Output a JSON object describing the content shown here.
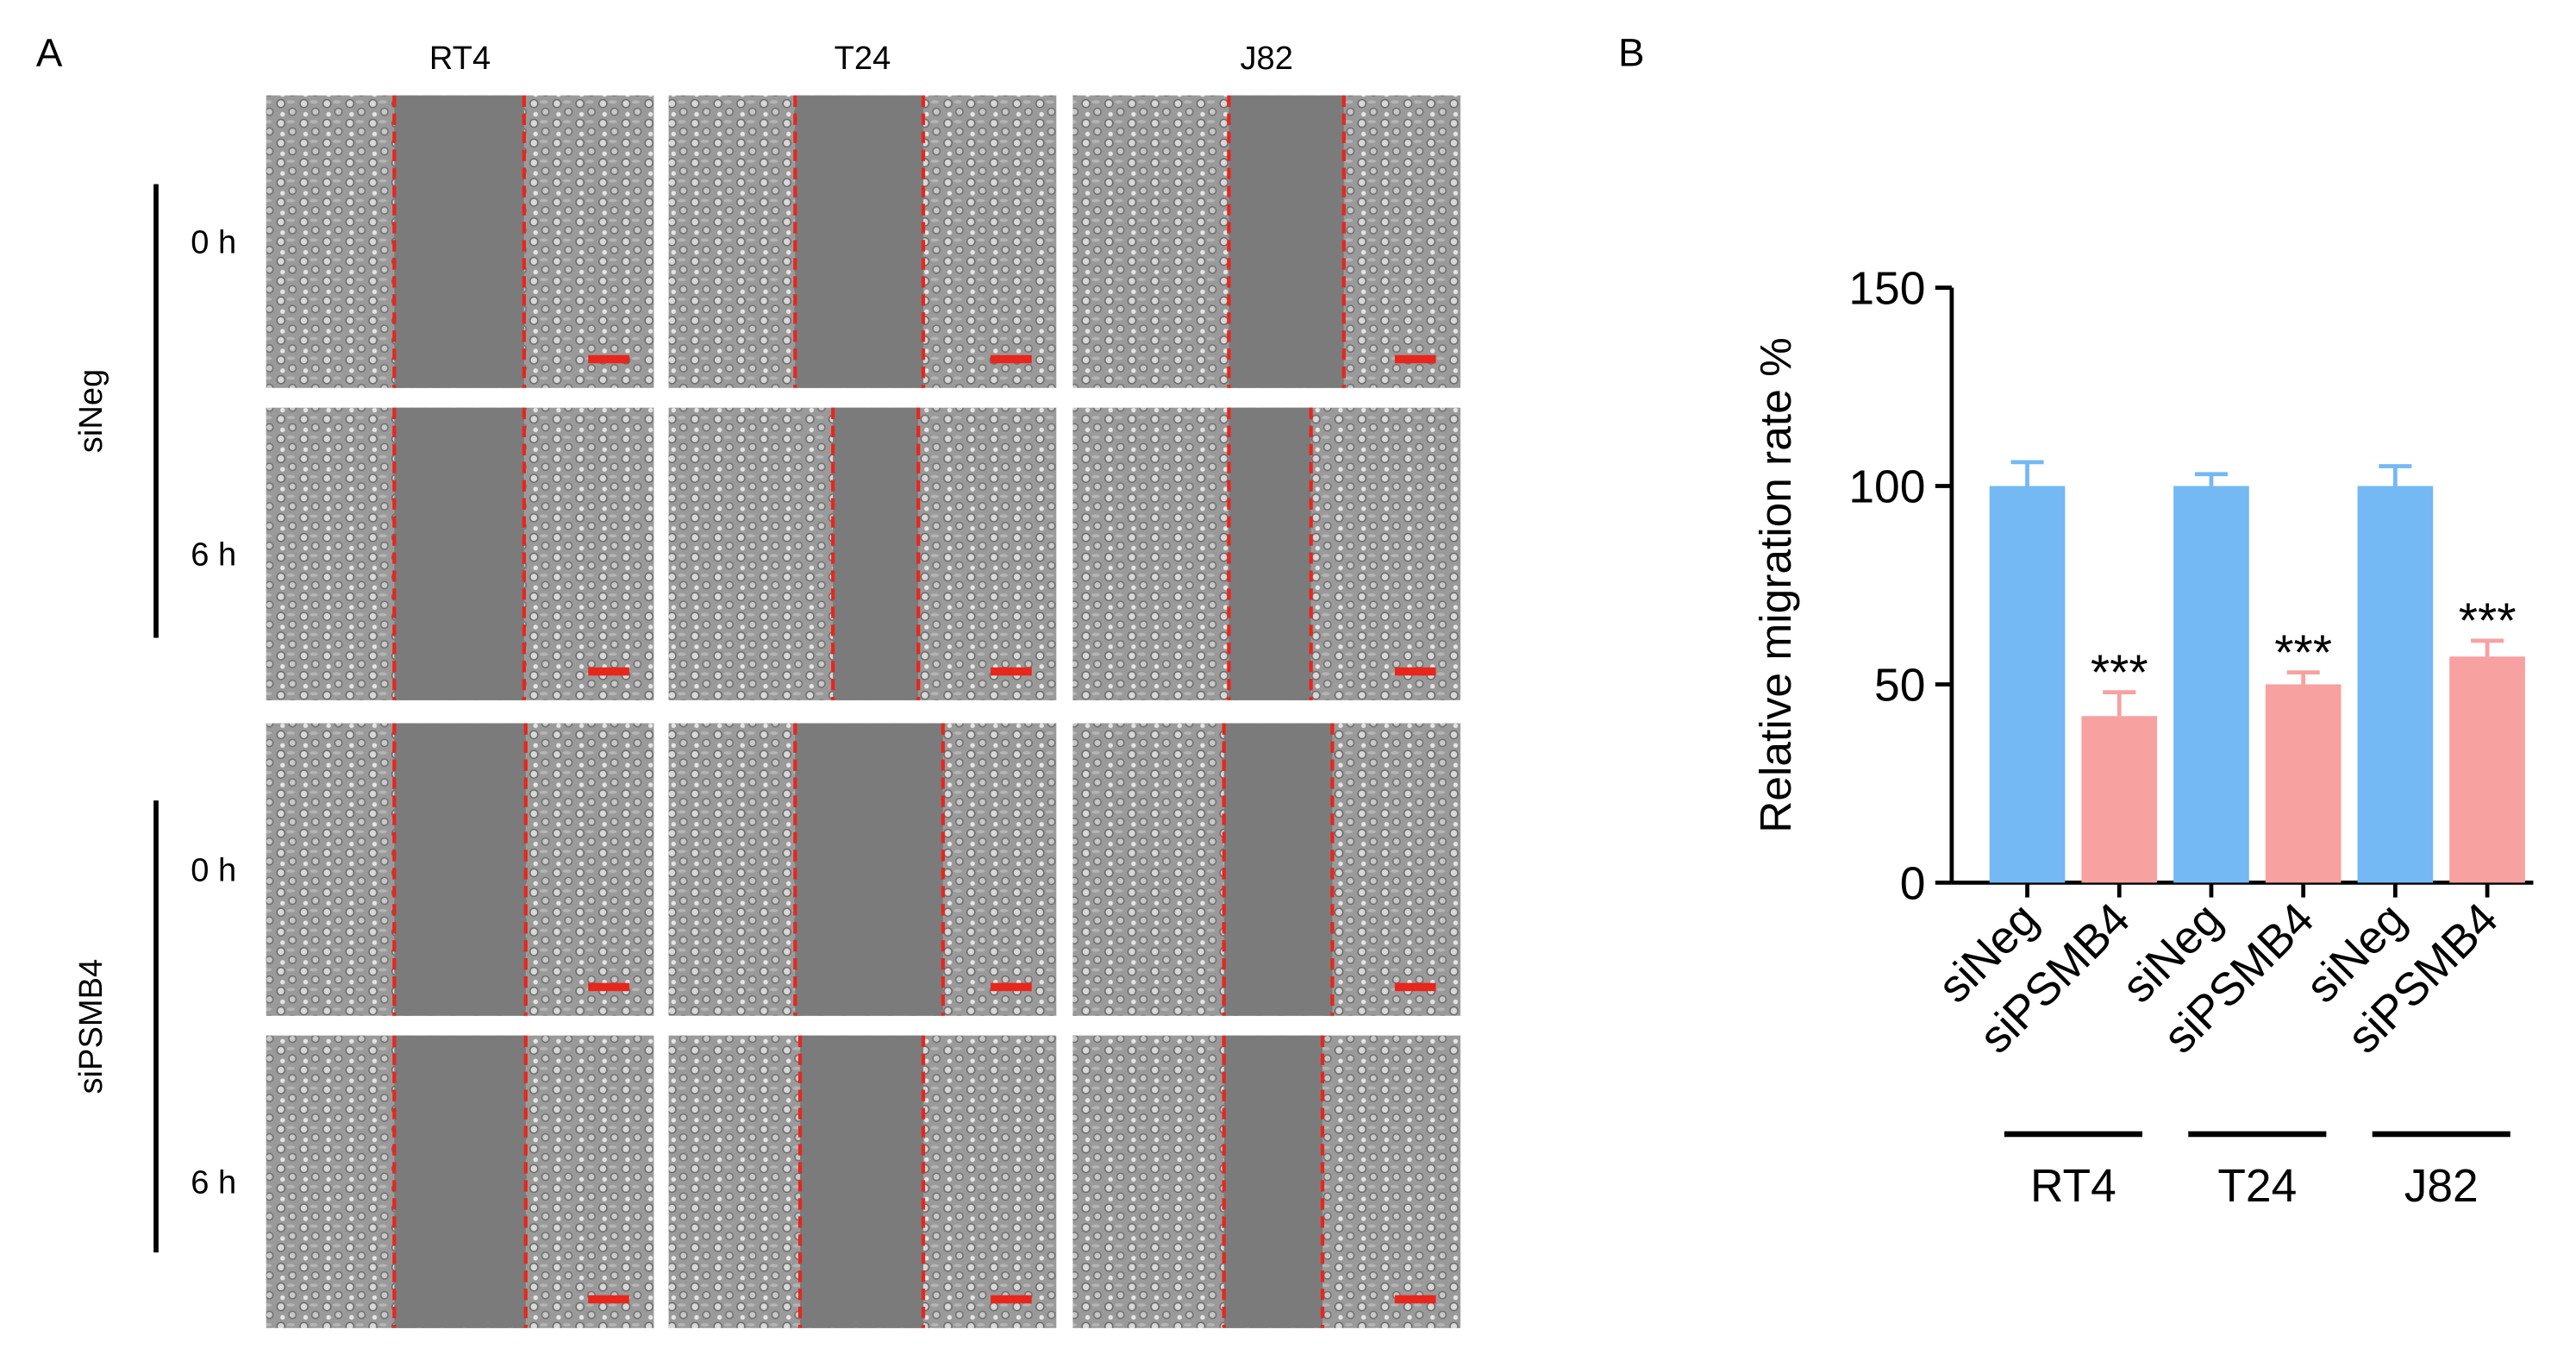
{
  "panel_a": {
    "label": "A",
    "columns": [
      "RT4",
      "T24",
      "J82"
    ],
    "groups": [
      "siNeg",
      "siPSMB4"
    ],
    "times": [
      "0 h",
      "6 h",
      "0 h",
      "6 h"
    ]
  },
  "chart_data": {
    "type": "bar",
    "label": "B",
    "ylabel": "Relative migration rate %",
    "categories": [
      "siNeg",
      "siPSMB4",
      "siNeg",
      "siPSMB4",
      "siNeg",
      "siPSMB4"
    ],
    "values": [
      100,
      42,
      100,
      50,
      100,
      57
    ],
    "errors": [
      6,
      6,
      3,
      3,
      5,
      4
    ],
    "colors": [
      "#74b9f4",
      "#f7a1a1",
      "#74b9f4",
      "#f7a1a1",
      "#74b9f4",
      "#f7a1a1"
    ],
    "annotations": [
      null,
      "***",
      null,
      "***",
      null,
      "***"
    ],
    "groups": [
      "RT4",
      "T24",
      "J82"
    ],
    "ylim": [
      0,
      150
    ],
    "yticks": [
      0,
      50,
      100,
      150
    ],
    "grid": false
  }
}
